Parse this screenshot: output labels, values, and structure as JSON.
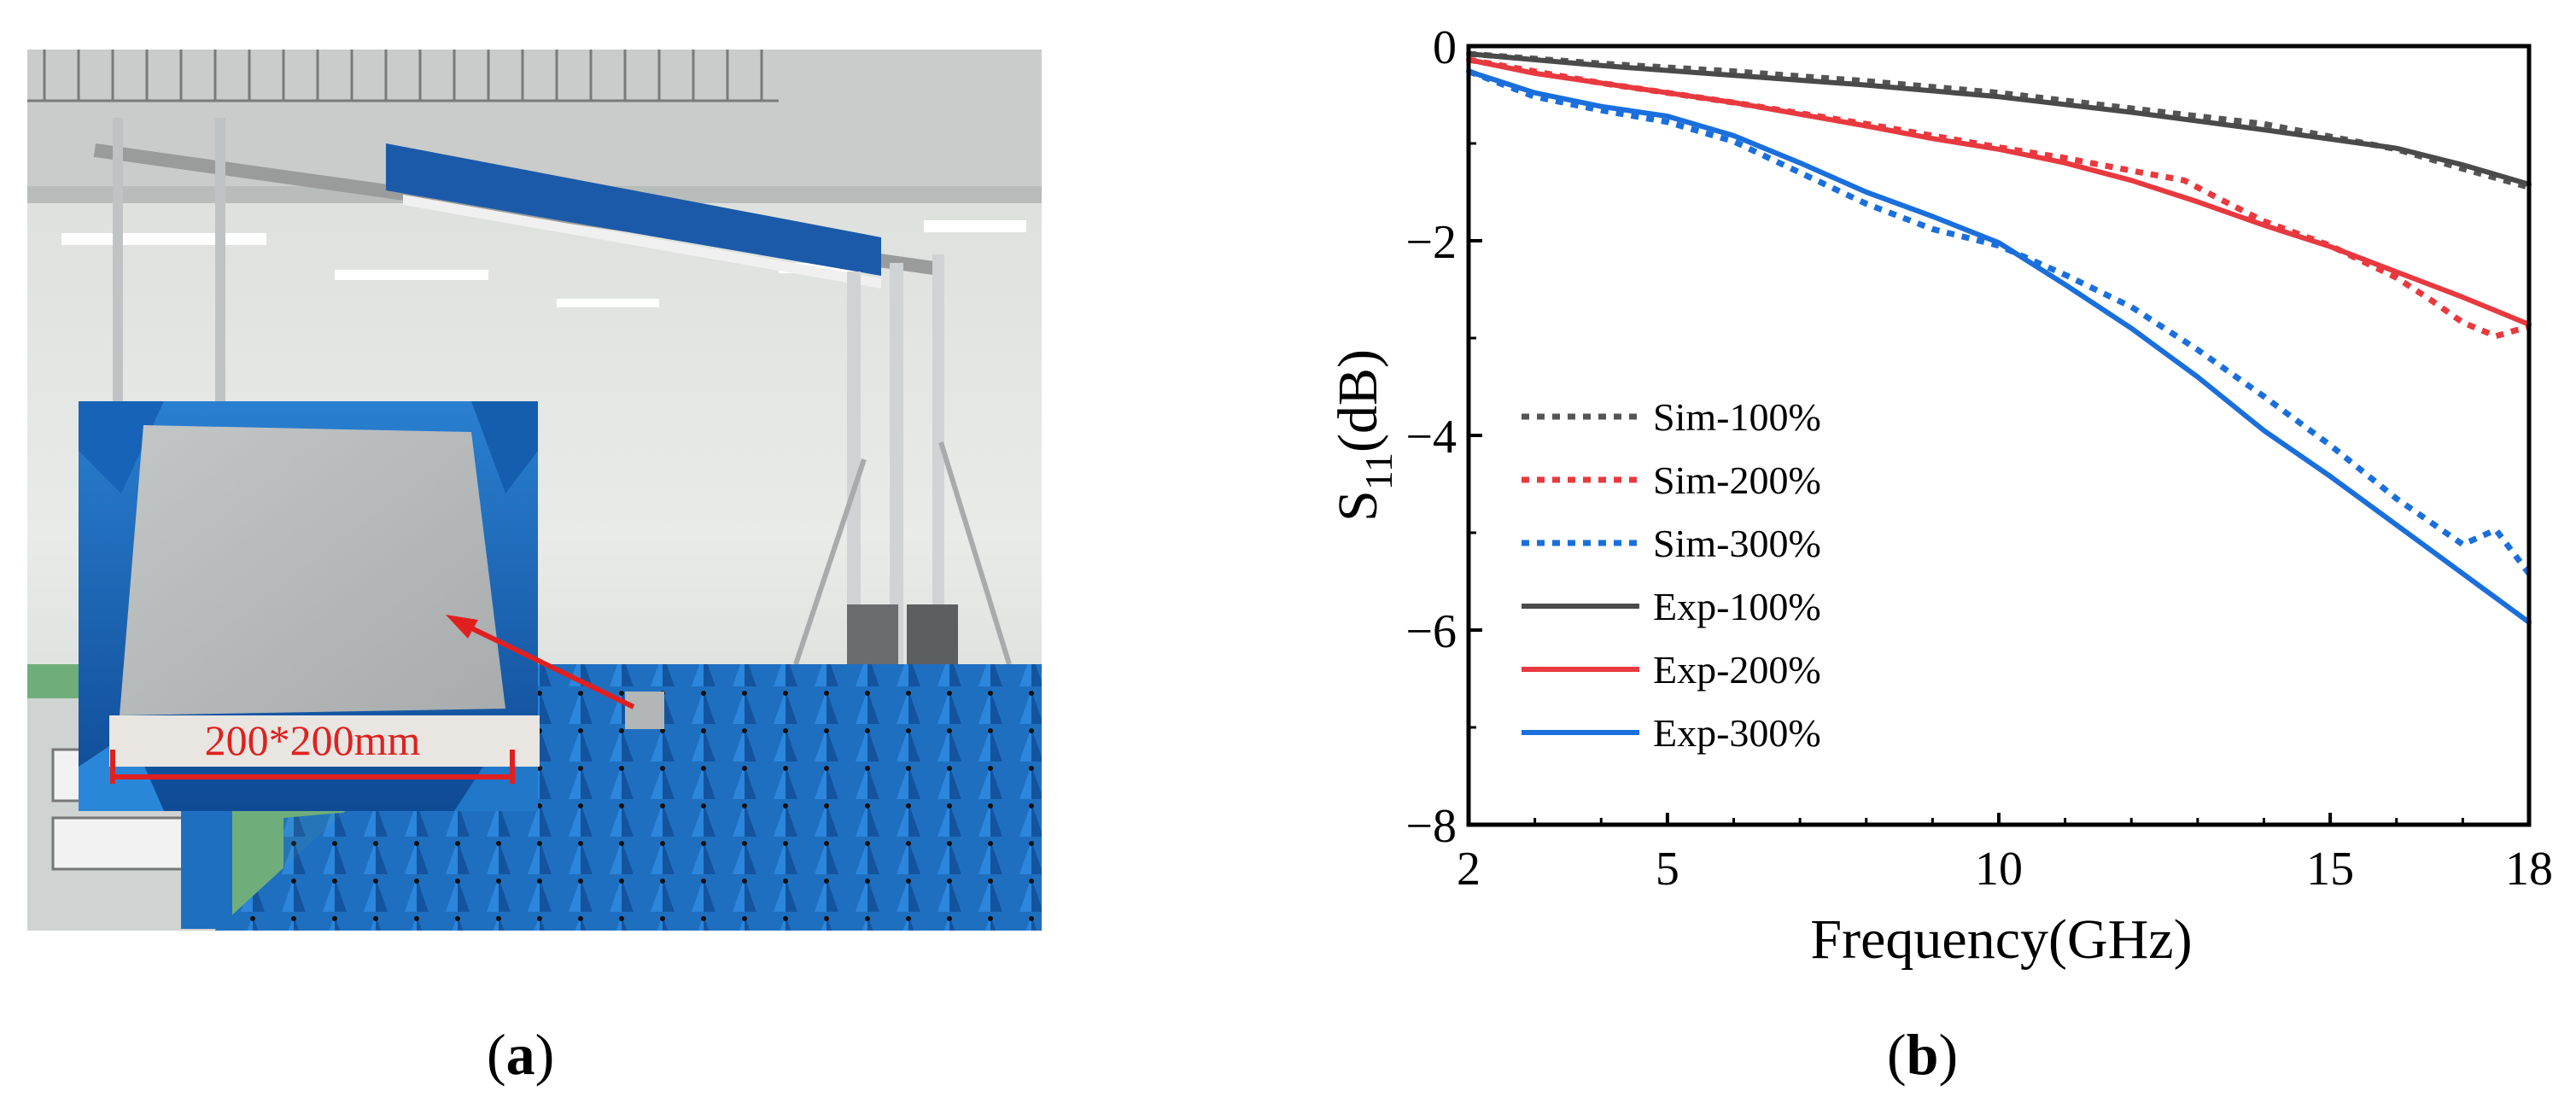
{
  "figure": {
    "panel_a_letter": "a",
    "panel_b_letter": "b",
    "photo": {
      "dimension_label": "200*200mm",
      "colors": {
        "absorber": "#1f6fc0",
        "wall": "#dfe3e0",
        "sample": "#b4b8b8",
        "arrow": "#e02020"
      }
    }
  },
  "chart_data": {
    "type": "line",
    "xlabel": "Frequency(GHz)",
    "ylabel_main": "S",
    "ylabel_sub": "11",
    "ylabel_tail": "(dB)",
    "xlim": [
      2,
      18
    ],
    "ylim": [
      -8,
      0
    ],
    "xticks": [
      "2",
      "5",
      "10",
      "15",
      "18"
    ],
    "yticks": [
      "0",
      "−2",
      "−4",
      "−6",
      "−8"
    ],
    "grid": false,
    "legend_position": "left-center",
    "series": [
      {
        "name": "Sim-100%",
        "style": "dotted",
        "color": "#555555",
        "x": [
          2,
          4,
          6,
          8,
          10,
          12,
          14,
          16,
          17,
          18
        ],
        "y": [
          -0.08,
          -0.18,
          -0.26,
          -0.36,
          -0.48,
          -0.64,
          -0.8,
          -1.06,
          -1.26,
          -1.45
        ]
      },
      {
        "name": "Sim-200%",
        "style": "dotted",
        "color": "#e8393f",
        "x": [
          2,
          4,
          6,
          8,
          10,
          11,
          12,
          12.8,
          13.3,
          14,
          15,
          16,
          16.5,
          17,
          17.5,
          18
        ],
        "y": [
          -0.14,
          -0.38,
          -0.58,
          -0.8,
          -1.04,
          -1.15,
          -1.28,
          -1.38,
          -1.56,
          -1.8,
          -2.05,
          -2.38,
          -2.6,
          -2.84,
          -2.98,
          -2.88
        ]
      },
      {
        "name": "Sim-300%",
        "style": "dotted",
        "color": "#1a6fdc",
        "x": [
          2,
          3,
          4,
          5,
          6,
          7,
          8,
          9,
          10,
          11,
          12,
          13,
          14,
          15,
          16,
          17,
          17.5,
          18
        ],
        "y": [
          -0.26,
          -0.52,
          -0.66,
          -0.78,
          -0.98,
          -1.3,
          -1.62,
          -1.88,
          -2.05,
          -2.35,
          -2.68,
          -3.12,
          -3.6,
          -4.1,
          -4.65,
          -5.12,
          -4.97,
          -5.42
        ]
      },
      {
        "name": "Exp-100%",
        "style": "solid",
        "color": "#4a4a4a",
        "x": [
          2,
          4,
          6,
          8,
          10,
          12,
          14,
          16,
          17,
          18
        ],
        "y": [
          -0.08,
          -0.2,
          -0.3,
          -0.4,
          -0.52,
          -0.68,
          -0.86,
          -1.05,
          -1.22,
          -1.42
        ]
      },
      {
        "name": "Exp-200%",
        "style": "solid",
        "color": "#e8393f",
        "x": [
          2,
          3,
          4,
          5,
          6,
          7,
          8,
          9,
          10,
          11,
          12,
          13,
          14,
          15,
          16,
          17,
          18
        ],
        "y": [
          -0.14,
          -0.28,
          -0.38,
          -0.48,
          -0.58,
          -0.7,
          -0.82,
          -0.95,
          -1.06,
          -1.2,
          -1.38,
          -1.6,
          -1.84,
          -2.06,
          -2.32,
          -2.58,
          -2.86
        ]
      },
      {
        "name": "Exp-300%",
        "style": "solid",
        "color": "#1a6fdc",
        "x": [
          2,
          3,
          4,
          5,
          6,
          7,
          8,
          9,
          10,
          11,
          12,
          13,
          14,
          15,
          16,
          17,
          18
        ],
        "y": [
          -0.26,
          -0.48,
          -0.62,
          -0.72,
          -0.92,
          -1.2,
          -1.5,
          -1.75,
          -2.02,
          -2.45,
          -2.9,
          -3.4,
          -3.95,
          -4.42,
          -4.92,
          -5.42,
          -5.92
        ]
      }
    ]
  }
}
